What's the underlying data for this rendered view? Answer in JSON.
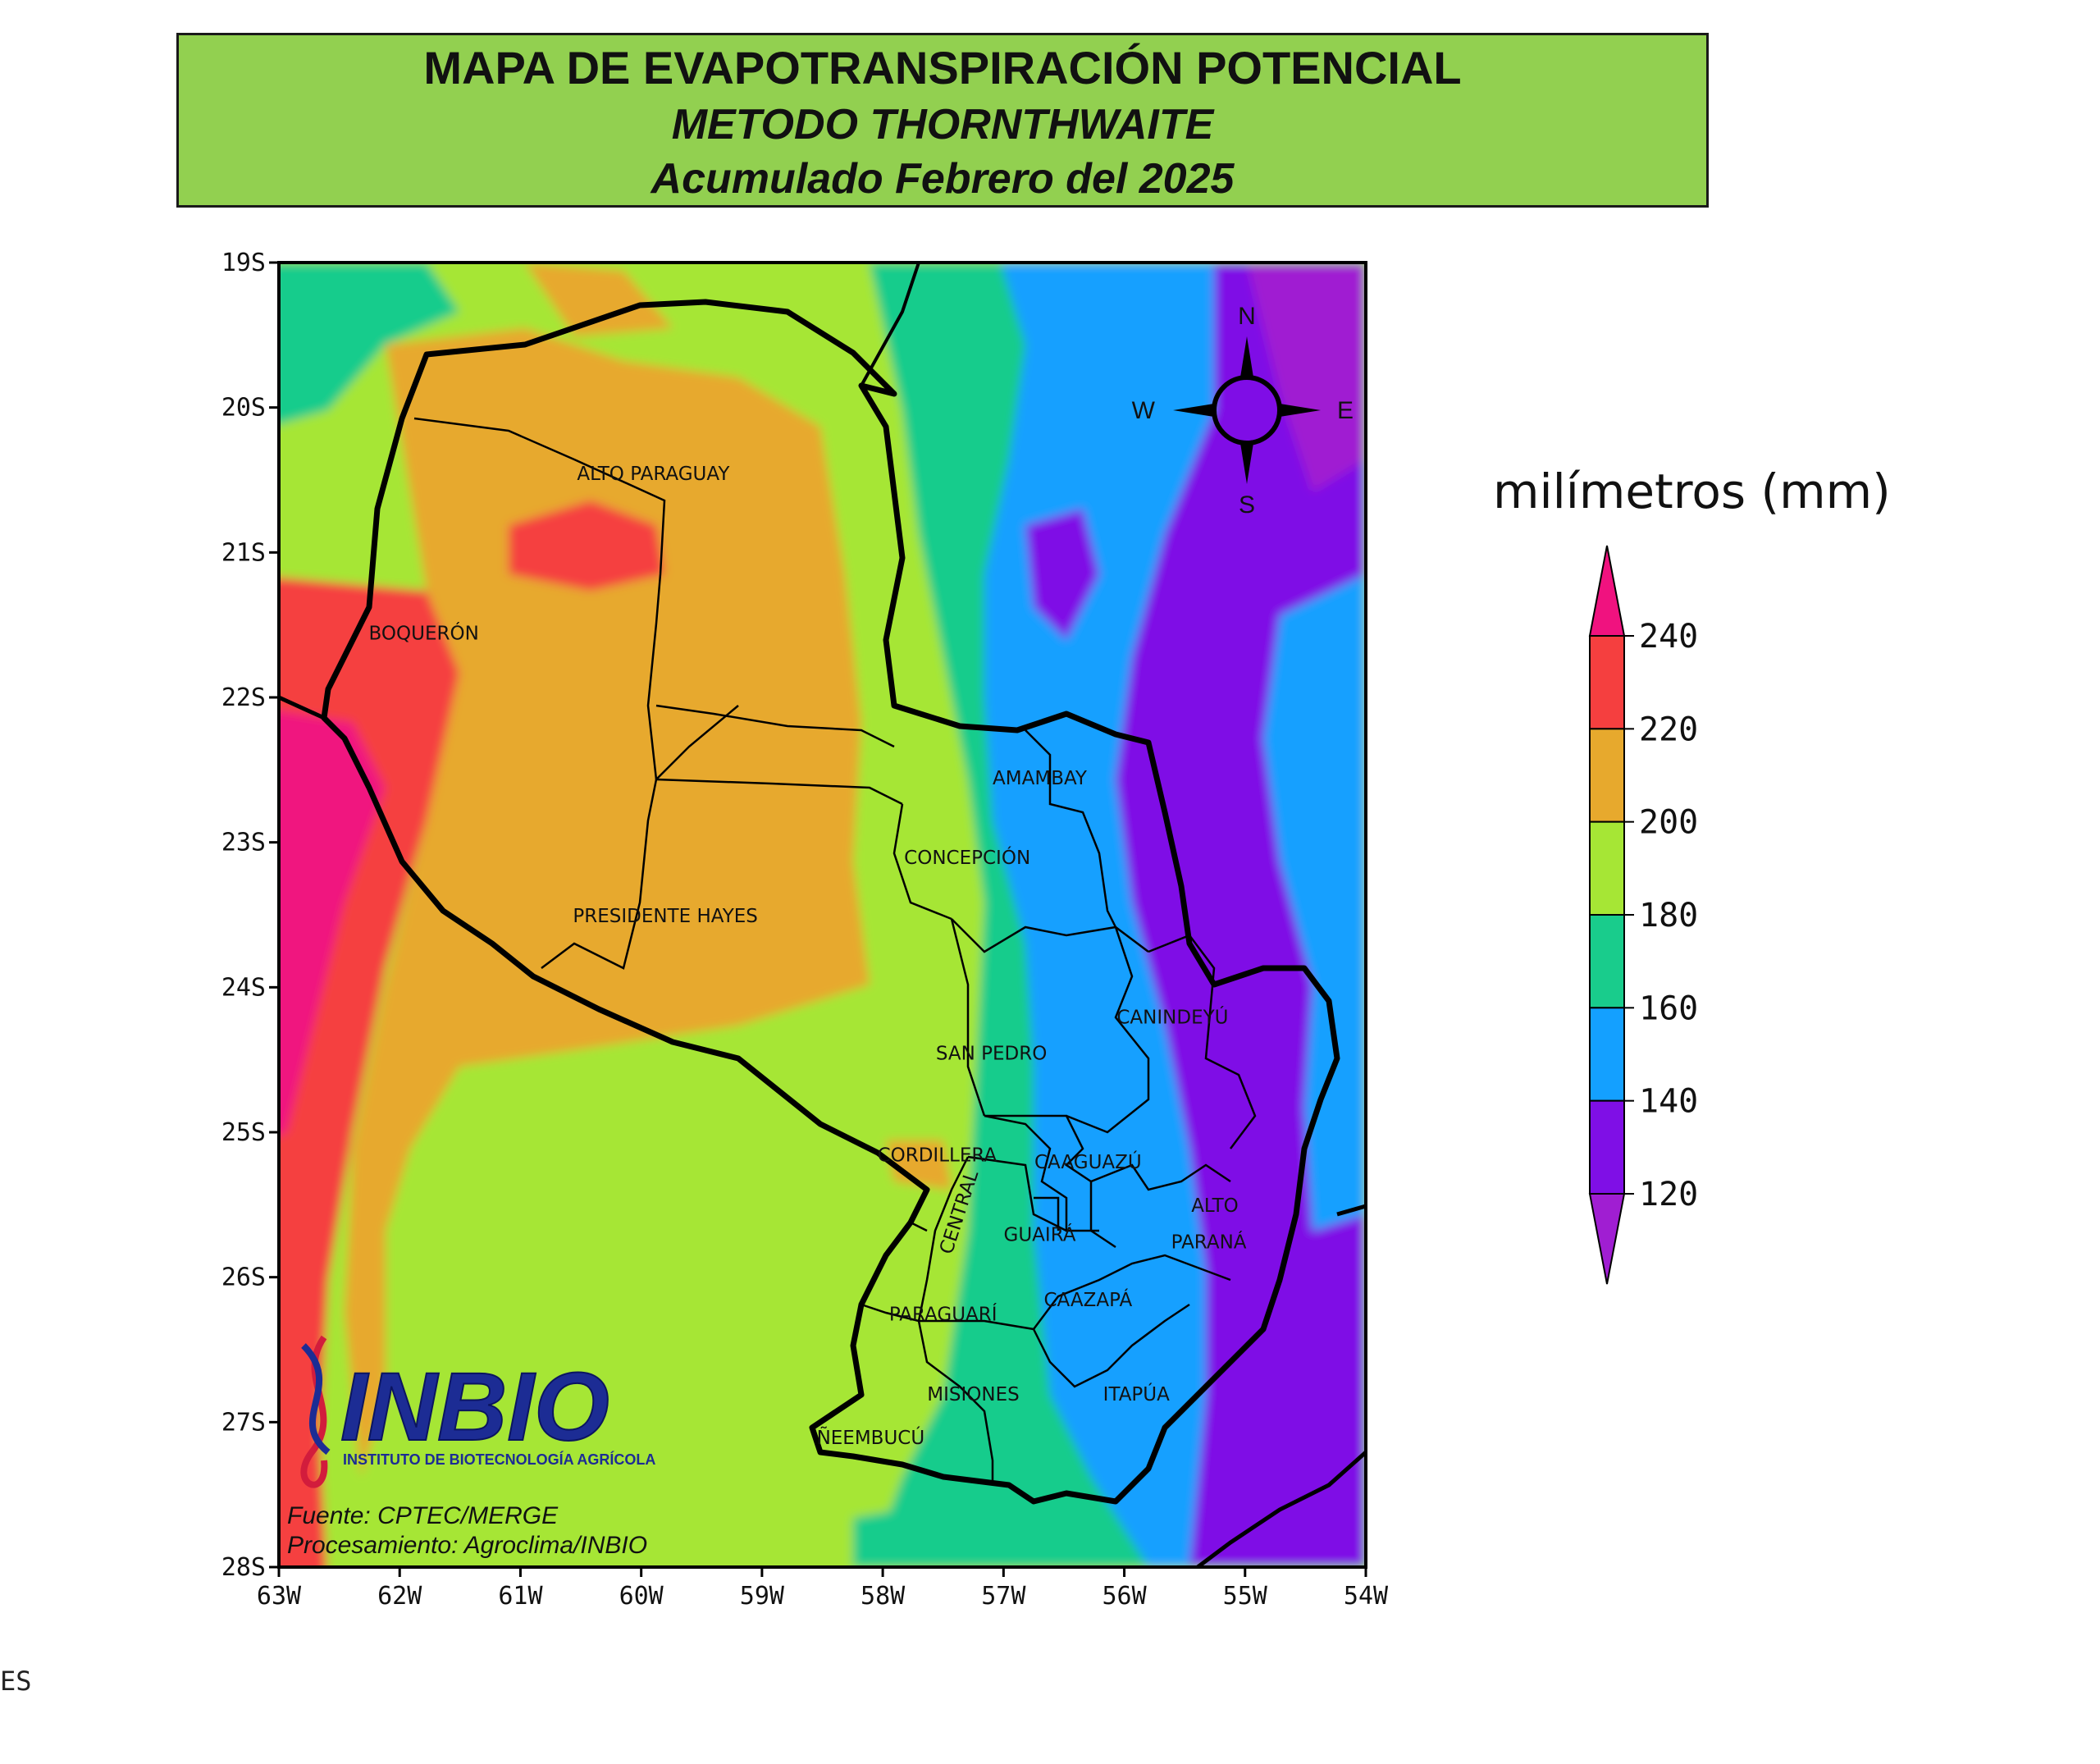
{
  "title": {
    "line1": "MAPA DE EVAPOTRANSPIRACIÓN POTENCIAL",
    "line2": "METODO THORNTHWAITE",
    "line3": "Acumulado Febrero del 2025"
  },
  "axes": {
    "lat_labels": [
      "19S",
      "20S",
      "21S",
      "22S",
      "23S",
      "24S",
      "25S",
      "26S",
      "27S",
      "28S"
    ],
    "lon_labels": [
      "63W",
      "62W",
      "61W",
      "60W",
      "59W",
      "58W",
      "57W",
      "56W",
      "55W",
      "54W"
    ]
  },
  "departments": [
    {
      "name": "ALTO PARAGUAY",
      "lon": -59.9,
      "lat": -20.5
    },
    {
      "name": "BOQUERÓN",
      "lon": -61.8,
      "lat": -21.6
    },
    {
      "name": "PRESIDENTE HAYES",
      "lon": -59.8,
      "lat": -23.55
    },
    {
      "name": "AMAMBAY",
      "lon": -56.7,
      "lat": -22.6
    },
    {
      "name": "CONCEPCIÓN",
      "lon": -57.3,
      "lat": -23.15
    },
    {
      "name": "SAN PEDRO",
      "lon": -57.1,
      "lat": -24.5
    },
    {
      "name": "CANINDEYÚ",
      "lon": -55.6,
      "lat": -24.25
    },
    {
      "name": "CORDILLERA",
      "lon": -57.55,
      "lat": -25.2
    },
    {
      "name": "CAAGUAZÚ",
      "lon": -56.3,
      "lat": -25.25
    },
    {
      "name": "ALTO",
      "lon": -55.25,
      "lat": -25.55
    },
    {
      "name": "PARANÁ",
      "lon": -55.3,
      "lat": -25.8
    },
    {
      "name": "GUAIRÁ",
      "lon": -56.7,
      "lat": -25.75
    },
    {
      "name": "CAAZAPÁ",
      "lon": -56.3,
      "lat": -26.2
    },
    {
      "name": "PARAGUARÍ",
      "lon": -57.5,
      "lat": -26.3
    },
    {
      "name": "MISIONES",
      "lon": -57.25,
      "lat": -26.85
    },
    {
      "name": "ITAPÚA",
      "lon": -55.9,
      "lat": -26.85
    },
    {
      "name": "ÑEEMBUCÚ",
      "lon": -58.1,
      "lat": -27.15
    }
  ],
  "central_label": "CENTRAL",
  "compass": {
    "n": "N",
    "s": "S",
    "e": "E",
    "w": "W"
  },
  "legend": {
    "unit": "milímetros (mm)",
    "values": [
      "240",
      "220",
      "200",
      "180",
      "160",
      "140",
      "120"
    ],
    "colors": {
      "above_240": "#f0127f",
      "220_240": "#f53f3f",
      "200_220": "#e7a92d",
      "180_200": "#a6e635",
      "160_180": "#19cc8c",
      "140_160": "#14a0ff",
      "120_140": "#7f0fe6",
      "below_120": "#a01ed2"
    }
  },
  "logo": {
    "name": "INBIO",
    "subtitle": "INSTITUTO DE BIOTECNOLOGÍA AGRÍCOLA"
  },
  "credits": {
    "source": "Fuente: CPTEC/MERGE",
    "processing": "Procesamiento: Agroclima/INBIO"
  },
  "stray_text": "ES"
}
